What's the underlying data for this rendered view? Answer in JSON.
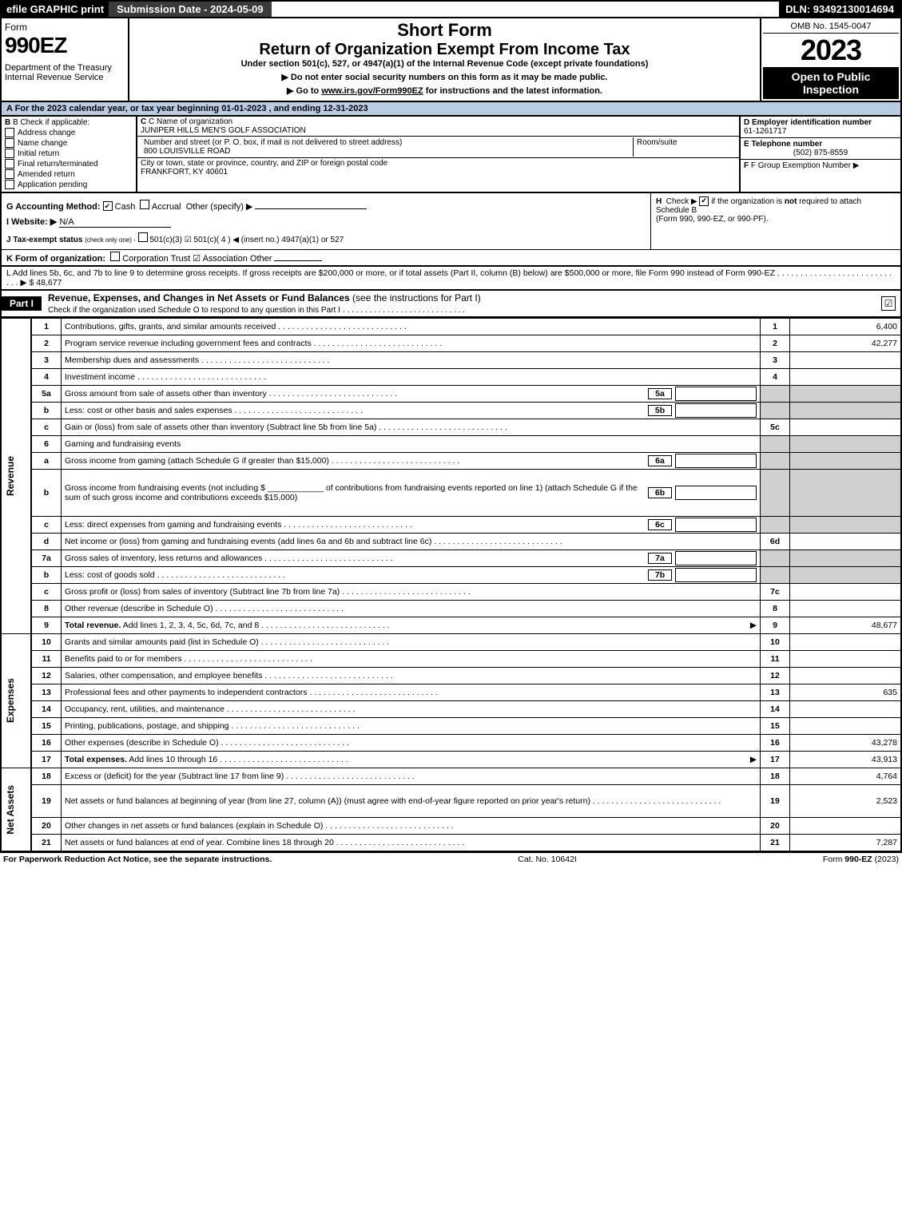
{
  "topbar": {
    "efile": "efile GRAPHIC print",
    "submission": "Submission Date - 2024-05-09",
    "dln": "DLN: 93492130014694"
  },
  "header": {
    "form_word": "Form",
    "form_num": "990EZ",
    "dept1": "Department of the Treasury",
    "dept2": "Internal Revenue Service",
    "title1": "Short Form",
    "title2": "Return of Organization Exempt From Income Tax",
    "subtitle": "Under section 501(c), 527, or 4947(a)(1) of the Internal Revenue Code (except private foundations)",
    "bullet1": "▶ Do not enter social security numbers on this form as it may be made public.",
    "bullet2_pre": "▶ Go to ",
    "bullet2_link": "www.irs.gov/Form990EZ",
    "bullet2_post": " for instructions and the latest information.",
    "omb": "OMB No. 1545-0047",
    "year": "2023",
    "badge1": "Open to Public Inspection"
  },
  "lineA": "A  For the 2023 calendar year, or tax year beginning 01-01-2023 , and ending 12-31-2023",
  "boxB": {
    "label": "B  Check if applicable:",
    "opts": [
      "Address change",
      "Name change",
      "Initial return",
      "Final return/terminated",
      "Amended return",
      "Application pending"
    ]
  },
  "boxC": {
    "label": "C Name of organization",
    "name": "JUNIPER HILLS MEN'S GOLF ASSOCIATION",
    "street_label": "Number and street (or P. O. box, if mail is not delivered to street address)",
    "street": "800 LOUISVILLE ROAD",
    "room_label": "Room/suite",
    "city_label": "City or town, state or province, country, and ZIP or foreign postal code",
    "city": "FRANKFORT, KY  40601"
  },
  "boxDEF": {
    "d_label": "D Employer identification number",
    "d_val": "61-1261717",
    "e_label": "E Telephone number",
    "e_val": "(502) 875-8559",
    "f_label": "F Group Exemption Number  ▶"
  },
  "lineG": {
    "label": "G Accounting Method:",
    "cash": "Cash",
    "accrual": "Accrual",
    "other": "Other (specify) ▶"
  },
  "lineH": {
    "label": "H",
    "text1": "Check ▶",
    "text2": "if the organization is ",
    "not": "not",
    "text3": " required to attach Schedule B",
    "text4": "(Form 990, 990-EZ, or 990-PF)."
  },
  "lineI": {
    "label": "I Website: ▶",
    "val": "N/A"
  },
  "lineJ": {
    "label": "J Tax-exempt status",
    "small": "(check only one) -",
    "opts": "501(c)(3)   ☑ 501(c)( 4 ) ◀ (insert no.)   4947(a)(1) or   527"
  },
  "lineK": {
    "label": "K Form of organization:",
    "opts": "Corporation    Trust    ☑ Association    Other"
  },
  "lineL": {
    "text": "L Add lines 5b, 6c, and 7b to line 9 to determine gross receipts. If gross receipts are $200,000 or more, or if total assets (Part II, column (B) below) are $500,000 or more, file Form 990 instead of Form 990-EZ",
    "amt_lbl": "▶ $",
    "amt": "48,677"
  },
  "partI": {
    "tab": "Part I",
    "title": "Revenue, Expenses, and Changes in Net Assets or Fund Balances",
    "title_note": "(see the instructions for Part I)",
    "check_note": "Check if the organization used Schedule O to respond to any question in this Part I"
  },
  "sections": {
    "revenue": "Revenue",
    "expenses": "Expenses",
    "netassets": "Net Assets"
  },
  "rows": [
    {
      "n": "1",
      "desc": "Contributions, gifts, grants, and similar amounts received",
      "box": "1",
      "amt": "6,400"
    },
    {
      "n": "2",
      "desc": "Program service revenue including government fees and contracts",
      "box": "2",
      "amt": "42,277"
    },
    {
      "n": "3",
      "desc": "Membership dues and assessments",
      "box": "3",
      "amt": ""
    },
    {
      "n": "4",
      "desc": "Investment income",
      "box": "4",
      "amt": ""
    },
    {
      "n": "5a",
      "desc": "Gross amount from sale of assets other than inventory",
      "sub": "5a",
      "subamt": "",
      "shade_right": true
    },
    {
      "n": "b",
      "desc": "Less: cost or other basis and sales expenses",
      "sub": "5b",
      "subamt": "",
      "shade_right": true
    },
    {
      "n": "c",
      "desc": "Gain or (loss) from sale of assets other than inventory (Subtract line 5b from line 5a)",
      "box": "5c",
      "amt": ""
    },
    {
      "n": "6",
      "desc": "Gaming and fundraising events",
      "shade_right": true,
      "no_box": true
    },
    {
      "n": "a",
      "desc": "Gross income from gaming (attach Schedule G if greater than $15,000)",
      "sub": "6a",
      "subamt": "",
      "shade_right": true
    },
    {
      "n": "b",
      "desc_html": "Gross income from fundraising events (not including $ ____________ of contributions from fundraising events reported on line 1) (attach Schedule G if the sum of such gross income and contributions exceeds $15,000)",
      "sub": "6b",
      "subamt": "",
      "shade_right": true,
      "tall": true
    },
    {
      "n": "c",
      "desc": "Less: direct expenses from gaming and fundraising events",
      "sub": "6c",
      "subamt": "",
      "shade_right": true
    },
    {
      "n": "d",
      "desc": "Net income or (loss) from gaming and fundraising events (add lines 6a and 6b and subtract line 6c)",
      "box": "6d",
      "amt": ""
    },
    {
      "n": "7a",
      "desc": "Gross sales of inventory, less returns and allowances",
      "sub": "7a",
      "subamt": "",
      "shade_right": true
    },
    {
      "n": "b",
      "desc": "Less: cost of goods sold",
      "sub": "7b",
      "subamt": "",
      "shade_right": true
    },
    {
      "n": "c",
      "desc": "Gross profit or (loss) from sales of inventory (Subtract line 7b from line 7a)",
      "box": "7c",
      "amt": ""
    },
    {
      "n": "8",
      "desc": "Other revenue (describe in Schedule O)",
      "box": "8",
      "amt": ""
    },
    {
      "n": "9",
      "desc_bold": "Total revenue.",
      "desc": " Add lines 1, 2, 3, 4, 5c, 6d, 7c, and 8",
      "box": "9",
      "amt": "48,677",
      "arrow": true
    }
  ],
  "exp_rows": [
    {
      "n": "10",
      "desc": "Grants and similar amounts paid (list in Schedule O)",
      "box": "10",
      "amt": ""
    },
    {
      "n": "11",
      "desc": "Benefits paid to or for members",
      "box": "11",
      "amt": ""
    },
    {
      "n": "12",
      "desc": "Salaries, other compensation, and employee benefits",
      "box": "12",
      "amt": ""
    },
    {
      "n": "13",
      "desc": "Professional fees and other payments to independent contractors",
      "box": "13",
      "amt": "635"
    },
    {
      "n": "14",
      "desc": "Occupancy, rent, utilities, and maintenance",
      "box": "14",
      "amt": ""
    },
    {
      "n": "15",
      "desc": "Printing, publications, postage, and shipping",
      "box": "15",
      "amt": ""
    },
    {
      "n": "16",
      "desc": "Other expenses (describe in Schedule O)",
      "box": "16",
      "amt": "43,278"
    },
    {
      "n": "17",
      "desc_bold": "Total expenses.",
      "desc": " Add lines 10 through 16",
      "box": "17",
      "amt": "43,913",
      "arrow": true
    }
  ],
  "na_rows": [
    {
      "n": "18",
      "desc": "Excess or (deficit) for the year (Subtract line 17 from line 9)",
      "box": "18",
      "amt": "4,764"
    },
    {
      "n": "19",
      "desc": "Net assets or fund balances at beginning of year (from line 27, column (A)) (must agree with end-of-year figure reported on prior year's return)",
      "box": "19",
      "amt": "2,523",
      "tall": true
    },
    {
      "n": "20",
      "desc": "Other changes in net assets or fund balances (explain in Schedule O)",
      "box": "20",
      "amt": ""
    },
    {
      "n": "21",
      "desc": "Net assets or fund balances at end of year. Combine lines 18 through 20",
      "box": "21",
      "amt": "7,287"
    }
  ],
  "footer": {
    "left": "For Paperwork Reduction Act Notice, see the separate instructions.",
    "mid": "Cat. No. 10642I",
    "right_pre": "Form ",
    "right_form": "990-EZ",
    "right_post": " (2023)"
  },
  "colors": {
    "lineA_bg": "#b8cce4",
    "shade": "#d0d0d0",
    "top_mid": "#3b3b3b"
  }
}
